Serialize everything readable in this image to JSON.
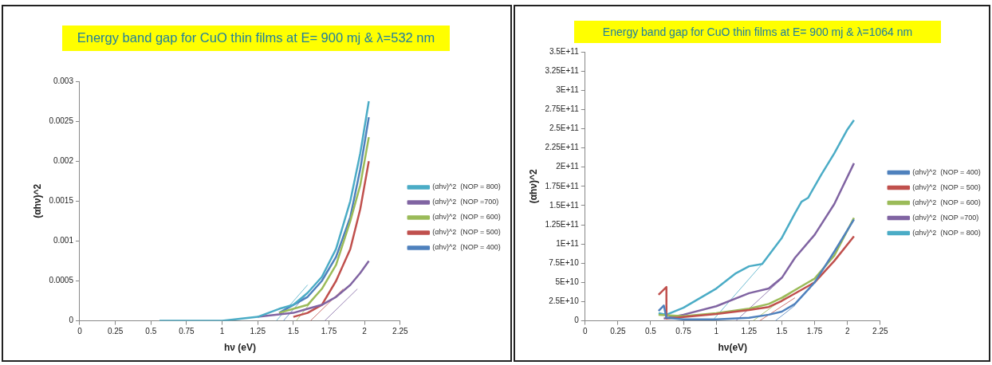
{
  "chart_data": [
    {
      "type": "line",
      "title": "Energy band gap for CuO thin films at E= 900 mj & λ=532 nm",
      "xlabel": "hν (eV)",
      "ylabel": "(αhν)^2",
      "xlim": [
        0,
        2.25
      ],
      "xticks": [
        0,
        0.25,
        0.5,
        0.75,
        1,
        1.25,
        1.5,
        1.75,
        2,
        2.25
      ],
      "ylim": [
        0,
        0.003
      ],
      "yticks": [
        0,
        0.0005,
        0.001,
        0.0015,
        0.002,
        0.0025,
        0.003
      ],
      "grid": false,
      "legend": "right",
      "marker": "none",
      "line_style": "solid",
      "series": [
        {
          "name": "(αhν)^2  (NOP = 800)",
          "color": "#4bacc6",
          "x": [
            0.56,
            1.0,
            1.25,
            1.4,
            1.5,
            1.6,
            1.7,
            1.8,
            1.9,
            1.97,
            2.03
          ],
          "values": [
            0,
            0,
            5e-05,
            0.00015,
            0.0002,
            0.00035,
            0.00055,
            0.0009,
            0.0015,
            0.0021,
            0.00275
          ]
        },
        {
          "name": "(αhν)^2  (NOP =700)",
          "color": "#8064a2",
          "x": [
            1.25,
            1.5,
            1.6,
            1.7,
            1.8,
            1.9,
            1.97,
            2.03
          ],
          "values": [
            5e-05,
            0.0001,
            0.00015,
            0.0002,
            0.0003,
            0.00045,
            0.0006,
            0.00075
          ]
        },
        {
          "name": "(αhν)^2  (NOP = 600)",
          "color": "#9bbb59",
          "x": [
            1.4,
            1.5,
            1.6,
            1.7,
            1.8,
            1.9,
            1.97,
            2.03
          ],
          "values": [
            0.0001,
            0.00015,
            0.0002,
            0.0004,
            0.0007,
            0.00125,
            0.0017,
            0.0023
          ]
        },
        {
          "name": "(αhν)^2  (NOP = 500)",
          "color": "#c0504d",
          "x": [
            1.5,
            1.6,
            1.7,
            1.8,
            1.9,
            1.97,
            2.03
          ],
          "values": [
            5e-05,
            0.0001,
            0.0002,
            0.0005,
            0.0009,
            0.0014,
            0.002
          ]
        },
        {
          "name": "(αhν)^2  (NOP = 400)",
          "color": "#4f81bd",
          "x": [
            1.4,
            1.5,
            1.6,
            1.7,
            1.8,
            1.9,
            1.97,
            2.03
          ],
          "values": [
            0.0001,
            0.0002,
            0.0003,
            0.0005,
            0.0008,
            0.0013,
            0.0019,
            0.00255
          ]
        },
        {
          "type": "line",
          "color": "#4bacc6",
          "x": [
            1.38,
            1.6
          ],
          "values": [
            0,
            0.00045
          ]
        },
        {
          "type": "line",
          "color": "#4f81bd",
          "x": [
            1.43,
            1.65
          ],
          "values": [
            0,
            0.00045
          ]
        },
        {
          "type": "line",
          "color": "#9bbb59",
          "x": [
            1.52,
            1.72
          ],
          "values": [
            0,
            0.00045
          ]
        },
        {
          "type": "line",
          "color": "#c0504d",
          "x": [
            1.62,
            1.85
          ],
          "values": [
            0,
            0.0004
          ]
        },
        {
          "type": "line",
          "color": "#8064a2",
          "x": [
            1.72,
            1.95
          ],
          "values": [
            0,
            0.0004
          ]
        }
      ]
    },
    {
      "type": "line",
      "title": "Energy band gap for CuO thin films at E= 900 mj & λ=1064 nm",
      "xlabel": "hν(eV)",
      "ylabel": "(αhν)^2",
      "xlim": [
        0,
        2.25
      ],
      "xticks": [
        0,
        0.25,
        0.5,
        0.75,
        1,
        1.25,
        1.5,
        1.75,
        2,
        2.25
      ],
      "ylim": [
        0,
        350000000000
      ],
      "yticks": [
        0,
        {
          "value": 25000000000,
          "label": "2.5E+10"
        },
        {
          "value": 50000000000,
          "label": "5E+10"
        },
        {
          "value": 75000000000,
          "label": "7.5E+10"
        },
        {
          "value": 100000000000,
          "label": "1E+11"
        },
        {
          "value": 125000000000,
          "label": "1.25E+11"
        },
        {
          "value": 150000000000,
          "label": "1.5E+11"
        },
        {
          "value": 175000000000,
          "label": "1.75E+11"
        },
        {
          "value": 200000000000,
          "label": "2E+11"
        },
        {
          "value": 225000000000,
          "label": "2.25E+11"
        },
        {
          "value": 250000000000,
          "label": "2.5E+11"
        },
        {
          "value": 275000000000,
          "label": "2.75E+11"
        },
        {
          "value": 300000000000,
          "label": "3E+11"
        },
        {
          "value": 325000000000,
          "label": "3.25E+11"
        },
        {
          "value": 350000000000,
          "label": "3.5E+11"
        }
      ],
      "grid": false,
      "legend": "right",
      "marker": "none",
      "line_style": "solid",
      "series": [
        {
          "name": "(αhν)^2  (NOP = 400)",
          "color": "#4f81bd",
          "x": [
            0.56,
            0.6,
            0.62,
            0.75,
            1.0,
            1.25,
            1.4,
            1.5,
            1.6,
            1.75,
            1.9,
            2.05
          ],
          "values": [
            13000000000,
            20000000000,
            4000000000,
            2000000000,
            2000000000,
            4000000000,
            8000000000,
            12000000000,
            22000000000,
            50000000000,
            90000000000,
            132000000000
          ]
        },
        {
          "name": "(αhν)^2  (NOP = 500)",
          "color": "#c0504d",
          "x": [
            0.56,
            0.62,
            0.62,
            0.75,
            1.0,
            1.25,
            1.4,
            1.5,
            1.75,
            1.9,
            2.05
          ],
          "values": [
            34000000000,
            44000000000,
            3000000000,
            5000000000,
            9000000000,
            14000000000,
            18000000000,
            26000000000,
            50000000000,
            78000000000,
            110000000000
          ]
        },
        {
          "name": "(αhν)^2  (NOP = 600)",
          "color": "#9bbb59",
          "x": [
            0.56,
            0.75,
            1.0,
            1.25,
            1.4,
            1.5,
            1.75,
            1.9,
            2.05
          ],
          "values": [
            8000000000,
            6000000000,
            10000000000,
            16000000000,
            22000000000,
            30000000000,
            55000000000,
            85000000000,
            134000000000
          ]
        },
        {
          "name": "(αhν)^2  (NOP =700)",
          "color": "#8064a2",
          "x": [
            0.6,
            0.75,
            1.0,
            1.25,
            1.4,
            1.5,
            1.6,
            1.75,
            1.9,
            2.05
          ],
          "values": [
            3000000000,
            8000000000,
            19000000000,
            36000000000,
            42000000000,
            56000000000,
            82000000000,
            112000000000,
            152000000000,
            205000000000
          ]
        },
        {
          "name": "(αhν)^2  (NOP = 800)",
          "color": "#4bacc6",
          "x": [
            0.56,
            0.62,
            0.75,
            1.0,
            1.15,
            1.25,
            1.35,
            1.5,
            1.6,
            1.65,
            1.7,
            1.8,
            1.9,
            2.0,
            2.05
          ],
          "values": [
            10000000000,
            8000000000,
            17000000000,
            42000000000,
            62000000000,
            71000000000,
            74000000000,
            108000000000,
            140000000000,
            155000000000,
            160000000000,
            190000000000,
            218000000000,
            249000000000,
            261000000000
          ]
        },
        {
          "type": "line",
          "color": "#4bacc6",
          "x": [
            0.97,
            1.35
          ],
          "values": [
            0,
            74000000000
          ]
        },
        {
          "type": "line",
          "color": "#8064a2",
          "x": [
            1.15,
            1.5
          ],
          "values": [
            0,
            55000000000
          ]
        },
        {
          "type": "line",
          "color": "#9bbb59",
          "x": [
            1.28,
            1.6
          ],
          "values": [
            0,
            40000000000
          ]
        },
        {
          "type": "line",
          "color": "#c0504d",
          "x": [
            1.33,
            1.6
          ],
          "values": [
            0,
            30000000000
          ]
        },
        {
          "type": "line",
          "color": "#4f81bd",
          "x": [
            1.45,
            1.6
          ],
          "values": [
            0,
            20000000000
          ]
        }
      ]
    }
  ]
}
